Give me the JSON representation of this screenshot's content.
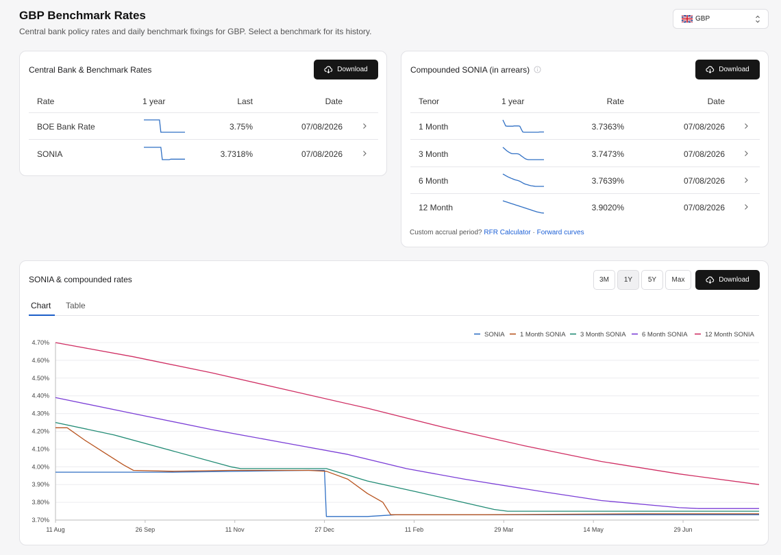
{
  "header": {
    "title": "GBP Benchmark Rates",
    "subtitle": "Central bank policy rates and daily benchmark fixings for GBP. Select a benchmark for its history."
  },
  "currency_selector": {
    "value": "GBP",
    "flag_icon": "uk-flag-icon"
  },
  "benchmark_card": {
    "title": "Central Bank & Benchmark Rates",
    "download_label": "Download",
    "columns": [
      "Rate",
      "1 year",
      "Last",
      "Date"
    ],
    "rows": [
      {
        "name": "BOE Bank Rate",
        "last": "3.75%",
        "date": "07/08/2026",
        "spark": [
          4.0,
          4.0,
          4.0,
          4.0,
          4.0,
          4.0,
          4.0,
          4.0,
          4.0,
          4.0,
          4.0,
          4.0,
          3.75,
          3.75,
          3.75,
          3.75,
          3.75,
          3.75,
          3.75,
          3.75,
          3.75,
          3.75,
          3.75,
          3.75,
          3.75,
          3.75,
          3.75,
          3.75,
          3.75,
          3.75
        ]
      },
      {
        "name": "SONIA",
        "last": "3.7318%",
        "date": "07/08/2026",
        "spark": [
          3.97,
          3.97,
          3.97,
          3.97,
          3.97,
          3.97,
          3.97,
          3.97,
          3.97,
          3.97,
          3.97,
          3.97,
          3.97,
          3.72,
          3.72,
          3.72,
          3.72,
          3.72,
          3.72,
          3.73,
          3.73,
          3.73,
          3.73,
          3.73,
          3.73,
          3.73,
          3.73,
          3.73,
          3.73,
          3.73
        ]
      }
    ]
  },
  "compounded_card": {
    "title": "Compounded SONIA (in arrears)",
    "download_label": "Download",
    "columns": [
      "Tenor",
      "1 year",
      "Rate",
      "Date"
    ],
    "rows": [
      {
        "name": "1 Month",
        "rate": "3.7363%",
        "date": "07/08/2026",
        "spark": [
          4.22,
          4.1,
          3.98,
          3.97,
          3.97,
          3.97,
          3.97,
          3.97,
          3.98,
          3.98,
          3.98,
          3.98,
          3.97,
          3.85,
          3.74,
          3.73,
          3.73,
          3.73,
          3.73,
          3.73,
          3.73,
          3.73,
          3.73,
          3.73,
          3.73,
          3.73,
          3.74,
          3.74,
          3.74,
          3.74
        ]
      },
      {
        "name": "3 Month",
        "rate": "3.7473%",
        "date": "07/08/2026",
        "spark": [
          4.25,
          4.2,
          4.15,
          4.1,
          4.06,
          4.03,
          4.0,
          3.99,
          3.99,
          3.99,
          3.99,
          3.98,
          3.95,
          3.9,
          3.86,
          3.82,
          3.78,
          3.76,
          3.75,
          3.75,
          3.75,
          3.75,
          3.75,
          3.75,
          3.75,
          3.75,
          3.75,
          3.75,
          3.75,
          3.75
        ]
      },
      {
        "name": "6 Month",
        "rate": "3.7639%",
        "date": "07/08/2026",
        "spark": [
          4.39,
          4.35,
          4.31,
          4.27,
          4.23,
          4.2,
          4.17,
          4.14,
          4.11,
          4.09,
          4.07,
          4.05,
          4.02,
          3.98,
          3.94,
          3.9,
          3.87,
          3.85,
          3.83,
          3.81,
          3.79,
          3.78,
          3.77,
          3.76,
          3.76,
          3.76,
          3.76,
          3.76,
          3.76,
          3.76
        ]
      },
      {
        "name": "12 Month",
        "rate": "3.9020%",
        "date": "07/08/2026",
        "spark": [
          4.7,
          4.67,
          4.64,
          4.61,
          4.58,
          4.55,
          4.52,
          4.49,
          4.46,
          4.43,
          4.4,
          4.37,
          4.34,
          4.31,
          4.28,
          4.25,
          4.22,
          4.19,
          4.16,
          4.13,
          4.1,
          4.07,
          4.04,
          4.01,
          3.98,
          3.96,
          3.94,
          3.92,
          3.91,
          3.9
        ]
      }
    ],
    "footnote_prefix": "Custom accrual period?",
    "link_calculator": "RFR Calculator",
    "separator": "·",
    "link_curves": "Forward curves"
  },
  "chart_card": {
    "title": "SONIA & compounded rates",
    "ranges": [
      "3M",
      "1Y",
      "5Y",
      "Max"
    ],
    "active_range": "1Y",
    "download_label": "Download",
    "tabs": [
      "Chart",
      "Table"
    ],
    "active_tab": "Chart"
  },
  "chart_data": {
    "type": "line",
    "title": "",
    "xlabel": "",
    "ylabel": "",
    "x_ticks": [
      "11 Aug",
      "26 Sep",
      "11 Nov",
      "27 Dec",
      "11 Feb",
      "29 Mar",
      "14 May",
      "29 Jun"
    ],
    "x_range_days": [
      0,
      361
    ],
    "x_tick_days": [
      0,
      46,
      92,
      138,
      184,
      230,
      276,
      322
    ],
    "y_ticks": [
      "4.70%",
      "4.60%",
      "4.50%",
      "4.40%",
      "4.30%",
      "4.20%",
      "4.10%",
      "4.00%",
      "3.90%",
      "3.80%",
      "3.70%"
    ],
    "ylim": [
      3.7,
      4.7
    ],
    "grid": true,
    "legend_position": "top-right",
    "series": [
      {
        "name": "SONIA",
        "color": "#2f6fc4",
        "points": [
          [
            0,
            3.97
          ],
          [
            60,
            3.97
          ],
          [
            130,
            3.98
          ],
          [
            138,
            3.98
          ],
          [
            139,
            3.72
          ],
          [
            160,
            3.72
          ],
          [
            175,
            3.73
          ],
          [
            361,
            3.73
          ]
        ]
      },
      {
        "name": "1 Month SONIA",
        "color": "#b8541f",
        "points": [
          [
            0,
            4.22
          ],
          [
            6,
            4.22
          ],
          [
            15,
            4.15
          ],
          [
            25,
            4.08
          ],
          [
            35,
            4.01
          ],
          [
            40,
            3.98
          ],
          [
            60,
            3.975
          ],
          [
            90,
            3.98
          ],
          [
            130,
            3.98
          ],
          [
            139,
            3.975
          ],
          [
            150,
            3.93
          ],
          [
            160,
            3.85
          ],
          [
            168,
            3.8
          ],
          [
            172,
            3.73
          ],
          [
            220,
            3.73
          ],
          [
            300,
            3.735
          ],
          [
            361,
            3.735
          ]
        ]
      },
      {
        "name": "3 Month SONIA",
        "color": "#1f8a73",
        "points": [
          [
            0,
            4.25
          ],
          [
            30,
            4.18
          ],
          [
            60,
            4.09
          ],
          [
            90,
            4.0
          ],
          [
            95,
            3.99
          ],
          [
            139,
            3.99
          ],
          [
            160,
            3.92
          ],
          [
            185,
            3.86
          ],
          [
            205,
            3.81
          ],
          [
            225,
            3.76
          ],
          [
            232,
            3.75
          ],
          [
            300,
            3.75
          ],
          [
            361,
            3.75
          ]
        ]
      },
      {
        "name": "6 Month SONIA",
        "color": "#7a3dd6",
        "points": [
          [
            0,
            4.39
          ],
          [
            40,
            4.3
          ],
          [
            80,
            4.21
          ],
          [
            120,
            4.13
          ],
          [
            150,
            4.07
          ],
          [
            180,
            3.99
          ],
          [
            210,
            3.93
          ],
          [
            250,
            3.86
          ],
          [
            280,
            3.81
          ],
          [
            320,
            3.77
          ],
          [
            330,
            3.765
          ],
          [
            361,
            3.765
          ]
        ]
      },
      {
        "name": "12 Month SONIA",
        "color": "#cf2d62",
        "points": [
          [
            0,
            4.7
          ],
          [
            40,
            4.62
          ],
          [
            80,
            4.53
          ],
          [
            120,
            4.43
          ],
          [
            160,
            4.33
          ],
          [
            200,
            4.22
          ],
          [
            240,
            4.12
          ],
          [
            280,
            4.03
          ],
          [
            320,
            3.96
          ],
          [
            361,
            3.9
          ]
        ]
      }
    ]
  }
}
